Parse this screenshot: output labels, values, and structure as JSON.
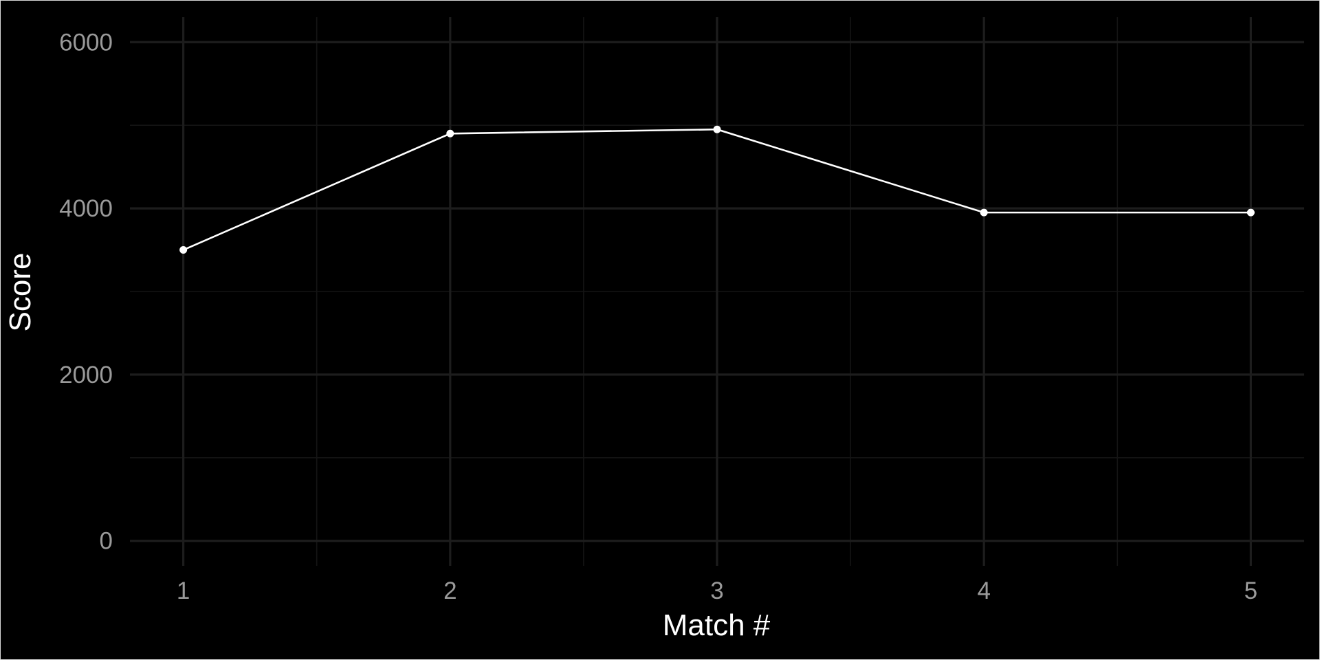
{
  "chart_data": {
    "type": "line",
    "title": "",
    "xlabel": "Match #",
    "ylabel": "Score",
    "x": [
      1,
      2,
      3,
      4,
      5
    ],
    "x_tick_labels": [
      "1",
      "2",
      "3",
      "4",
      "5"
    ],
    "xlim": [
      0.8,
      5.2
    ],
    "y_ticks": [
      0,
      2000,
      4000,
      6000
    ],
    "y_tick_labels": [
      "0",
      "2000",
      "4000",
      "6000"
    ],
    "ylim": [
      -300,
      6300
    ],
    "series": [
      {
        "values": [
          3500,
          4900,
          4950,
          3950,
          3950
        ]
      }
    ],
    "grid": true,
    "legend": "none",
    "colors": {
      "background": "#000000",
      "line": "#ffffff",
      "point": "#ffffff",
      "grid_major": "#1d1d1d",
      "grid_minor": "#141414",
      "tick_text": "#9a9a9a",
      "axis_title": "#ffffff"
    }
  }
}
